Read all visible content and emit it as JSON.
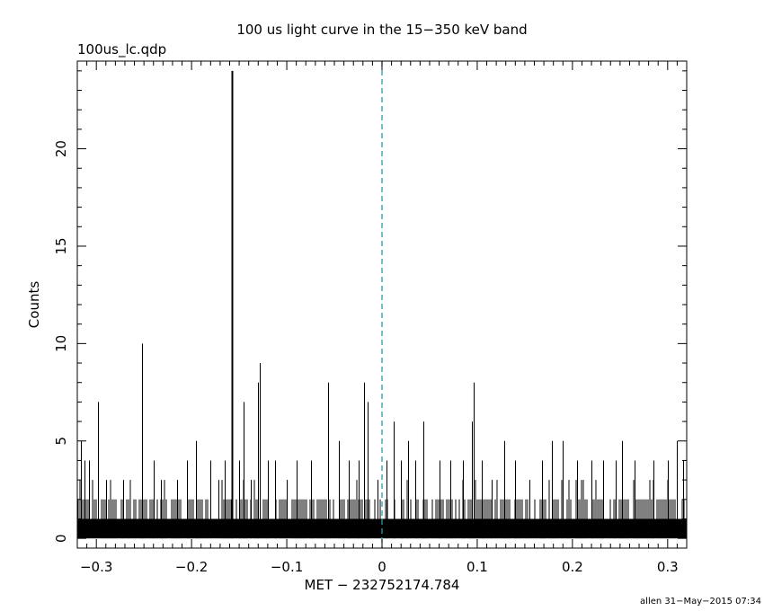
{
  "chart_data": {
    "type": "bar",
    "title": "100 us light curve in the 15−350 keV band",
    "file_label": "100us_lc.qdp",
    "xlabel": "MET − 232752174.784",
    "ylabel": "Counts",
    "footer": "allen 31−May−2015 07:34",
    "xlim": [
      -0.32,
      0.32
    ],
    "ylim": [
      -0.5,
      24.5
    ],
    "xticks": [
      {
        "value": -0.3,
        "label": "−0.3"
      },
      {
        "value": -0.2,
        "label": "−0.2"
      },
      {
        "value": -0.1,
        "label": "−0.1"
      },
      {
        "value": 0,
        "label": "0"
      },
      {
        "value": 0.1,
        "label": "0.1"
      },
      {
        "value": 0.2,
        "label": "0.2"
      },
      {
        "value": 0.3,
        "label": "0.3"
      }
    ],
    "yticks": [
      {
        "value": 0,
        "label": "0"
      },
      {
        "value": 5,
        "label": "5"
      },
      {
        "value": 10,
        "label": "10"
      },
      {
        "value": 15,
        "label": "15"
      },
      {
        "value": 20,
        "label": "20"
      }
    ],
    "reference_line": {
      "x": 0,
      "style": "dashed",
      "color": "#2a9bb0"
    },
    "bin_width": 0.0001,
    "baseline_level": 1,
    "peaks": [
      {
        "x": -0.316,
        "y": 5
      },
      {
        "x": -0.312,
        "y": 4
      },
      {
        "x": -0.308,
        "y": 4
      },
      {
        "x": -0.298,
        "y": 7
      },
      {
        "x": -0.29,
        "y": 3
      },
      {
        "x": -0.272,
        "y": 3
      },
      {
        "x": -0.252,
        "y": 10
      },
      {
        "x": -0.24,
        "y": 4
      },
      {
        "x": -0.232,
        "y": 3
      },
      {
        "x": -0.215,
        "y": 3
      },
      {
        "x": -0.205,
        "y": 4
      },
      {
        "x": -0.195,
        "y": 5
      },
      {
        "x": -0.18,
        "y": 4
      },
      {
        "x": -0.172,
        "y": 3
      },
      {
        "x": -0.165,
        "y": 4
      },
      {
        "x": -0.158,
        "y": 24
      },
      {
        "x": -0.15,
        "y": 4
      },
      {
        "x": -0.145,
        "y": 7
      },
      {
        "x": -0.138,
        "y": 3
      },
      {
        "x": -0.13,
        "y": 8
      },
      {
        "x": -0.128,
        "y": 9
      },
      {
        "x": -0.12,
        "y": 4
      },
      {
        "x": -0.112,
        "y": 4
      },
      {
        "x": -0.1,
        "y": 3
      },
      {
        "x": -0.09,
        "y": 4
      },
      {
        "x": -0.075,
        "y": 4
      },
      {
        "x": -0.057,
        "y": 8
      },
      {
        "x": -0.045,
        "y": 5
      },
      {
        "x": -0.035,
        "y": 4
      },
      {
        "x": -0.025,
        "y": 4
      },
      {
        "x": -0.019,
        "y": 8
      },
      {
        "x": -0.015,
        "y": 7
      },
      {
        "x": -0.005,
        "y": 3
      },
      {
        "x": 0.005,
        "y": 4
      },
      {
        "x": 0.012,
        "y": 6
      },
      {
        "x": 0.02,
        "y": 4
      },
      {
        "x": 0.027,
        "y": 5
      },
      {
        "x": 0.035,
        "y": 4
      },
      {
        "x": 0.043,
        "y": 6
      },
      {
        "x": 0.06,
        "y": 4
      },
      {
        "x": 0.072,
        "y": 4
      },
      {
        "x": 0.085,
        "y": 4
      },
      {
        "x": 0.094,
        "y": 6
      },
      {
        "x": 0.096,
        "y": 8
      },
      {
        "x": 0.105,
        "y": 4
      },
      {
        "x": 0.115,
        "y": 3
      },
      {
        "x": 0.128,
        "y": 5
      },
      {
        "x": 0.14,
        "y": 4
      },
      {
        "x": 0.155,
        "y": 3
      },
      {
        "x": 0.168,
        "y": 4
      },
      {
        "x": 0.178,
        "y": 5
      },
      {
        "x": 0.19,
        "y": 5
      },
      {
        "x": 0.205,
        "y": 4
      },
      {
        "x": 0.22,
        "y": 4
      },
      {
        "x": 0.232,
        "y": 4
      },
      {
        "x": 0.245,
        "y": 4
      },
      {
        "x": 0.252,
        "y": 5
      },
      {
        "x": 0.265,
        "y": 4
      },
      {
        "x": 0.285,
        "y": 4
      },
      {
        "x": 0.3,
        "y": 4
      },
      {
        "x": 0.31,
        "y": 5
      },
      {
        "x": 0.316,
        "y": 4
      }
    ]
  }
}
